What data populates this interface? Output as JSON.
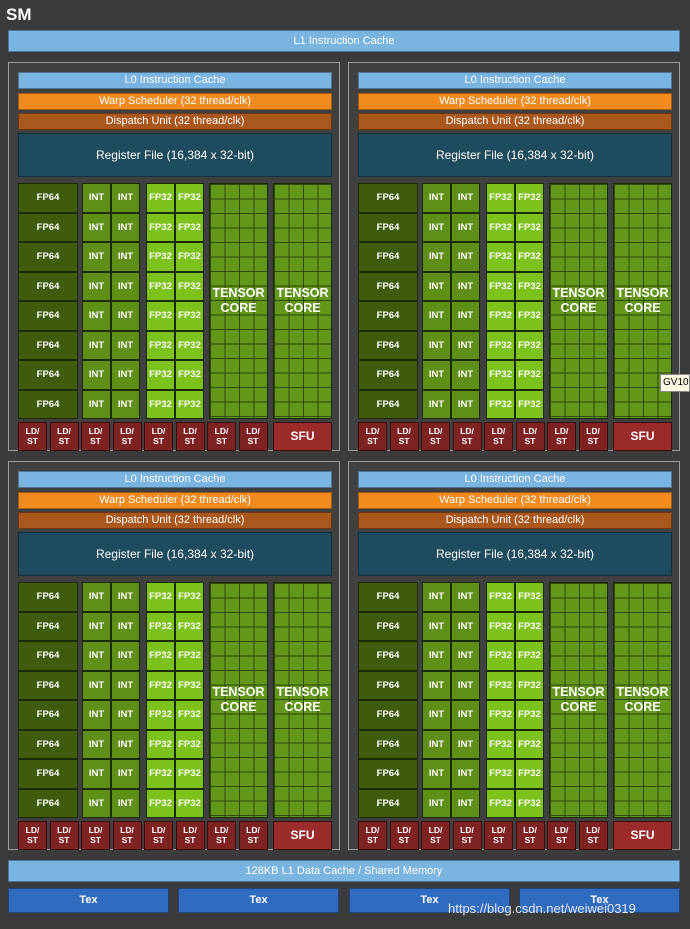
{
  "sm_title": "SM",
  "l1_instruction_cache": "L1 Instruction Cache",
  "l1_data_cache": "128KB L1 Data Cache / Shared Memory",
  "tex_units": [
    "Tex",
    "Tex",
    "Tex",
    "Tex"
  ],
  "gv_tag": "GV10",
  "watermark": "https://blog.csdn.net/weiwei0319",
  "partition": {
    "l0_cache": "L0 Instruction Cache",
    "warp_scheduler": "Warp Scheduler (32 thread/clk)",
    "dispatch_unit": "Dispatch Unit (32 thread/clk)",
    "register_file": "Register File (16,384 x 32-bit)",
    "fp64_label": "FP64",
    "int_label": "INT",
    "fp32_label": "FP32",
    "tensor_label_line1": "TENSOR",
    "tensor_label_line2": "CORE",
    "ldst_line1": "LD/",
    "ldst_line2": "ST",
    "sfu_label": "SFU",
    "rows": 8,
    "tensor_cores": 2,
    "ldst_units": 8
  },
  "colors": {
    "background": "#3b3b3b",
    "cache": "#7ab4e0",
    "warp_scheduler": "#f28a1e",
    "dispatch_unit": "#a9571d",
    "register_file": "#1e4b5e",
    "fp64": "#3e5c0c",
    "int": "#5f8f16",
    "fp32": "#7cc21a",
    "tensor": "#62971a",
    "ldst": "#7e2222",
    "sfu": "#9b2a2a",
    "tex": "#2f6bbf"
  }
}
